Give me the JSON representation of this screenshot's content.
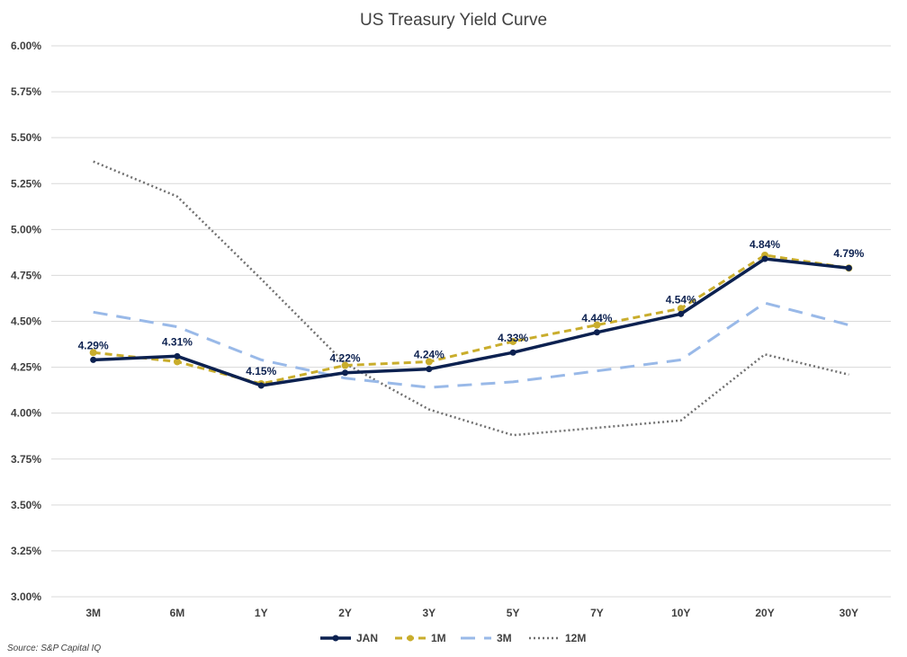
{
  "chart_data": {
    "type": "line",
    "title": "US Treasury Yield Curve",
    "categories": [
      "3M",
      "6M",
      "1Y",
      "2Y",
      "3Y",
      "5Y",
      "7Y",
      "10Y",
      "20Y",
      "30Y"
    ],
    "ylim": [
      3.0,
      6.0
    ],
    "yticks": [
      "3.00%",
      "3.25%",
      "3.50%",
      "3.75%",
      "4.00%",
      "4.25%",
      "4.50%",
      "4.75%",
      "5.00%",
      "5.25%",
      "5.50%",
      "5.75%",
      "6.00%"
    ],
    "ytick_values": [
      3.0,
      3.25,
      3.5,
      3.75,
      4.0,
      4.25,
      4.5,
      4.75,
      5.0,
      5.25,
      5.5,
      5.75,
      6.0
    ],
    "grid": true,
    "legend_position": "bottom",
    "series": [
      {
        "name": "JAN",
        "color": "#0c2150",
        "style": "solid",
        "markers": true,
        "values": [
          4.29,
          4.31,
          4.15,
          4.22,
          4.24,
          4.33,
          4.44,
          4.54,
          4.84,
          4.79
        ],
        "labels": [
          "4.29%",
          "4.31%",
          "4.15%",
          "4.22%",
          "4.24%",
          "4.33%",
          "4.44%",
          "4.54%",
          "4.84%",
          "4.79%"
        ]
      },
      {
        "name": "1M",
        "color": "#c9ad2c",
        "style": "dashed",
        "markers": true,
        "values": [
          4.33,
          4.28,
          4.16,
          4.26,
          4.28,
          4.39,
          4.48,
          4.57,
          4.86,
          4.79
        ]
      },
      {
        "name": "3M",
        "color": "#99b9e8",
        "style": "longdash",
        "markers": false,
        "values": [
          4.55,
          4.47,
          4.29,
          4.19,
          4.14,
          4.17,
          4.23,
          4.29,
          4.6,
          4.48
        ]
      },
      {
        "name": "12M",
        "color": "#707070",
        "style": "dotted",
        "markers": false,
        "values": [
          5.37,
          5.18,
          4.73,
          4.27,
          4.02,
          3.88,
          3.92,
          3.96,
          4.32,
          4.21
        ]
      }
    ]
  },
  "source": "Source: S&P Capital IQ"
}
